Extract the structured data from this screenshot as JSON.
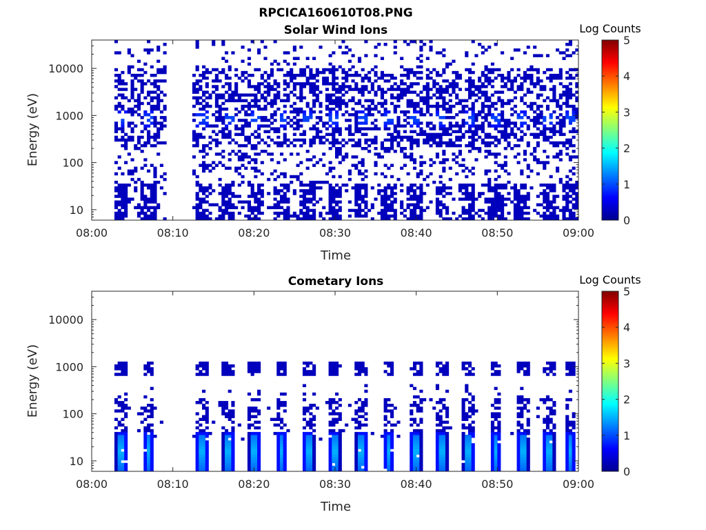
{
  "figure_title": "RPCICA160610T08.PNG",
  "chart_data": [
    {
      "type": "heatmap",
      "title": "Solar Wind Ions",
      "xlabel": "Time",
      "ylabel": "Energy (eV)",
      "x_ticks": [
        "08:00",
        "08:10",
        "08:20",
        "08:30",
        "08:40",
        "08:50",
        "09:00"
      ],
      "x_range": [
        "08:00",
        "09:00"
      ],
      "y_ticks": [
        "10",
        "100",
        "1000",
        "10000"
      ],
      "y_scale": "log",
      "ylim": [
        6,
        40000
      ],
      "colorbar": {
        "label": "Log Counts",
        "ticks": [
          "0",
          "1",
          "2",
          "3",
          "4",
          "5"
        ],
        "range": [
          0,
          5
        ],
        "colormap": "jet"
      },
      "sweep_times": [
        "08:03.7",
        "08:07.0",
        "08:13.6",
        "08:16.9",
        "08:20.1",
        "08:23.4",
        "08:26.7",
        "08:30.0",
        "08:33.3",
        "08:36.6",
        "08:39.9",
        "08:43.2",
        "08:46.5",
        "08:49.8",
        "08:53.1",
        "08:56.4",
        "08:59.0"
      ],
      "data_gap": [
        "08:08.8",
        "08:12.2"
      ],
      "peak_energy_eV": 800,
      "peak_log_counts": 1.0,
      "background_log_counts": 0.3,
      "grid": false
    },
    {
      "type": "heatmap",
      "title": "Cometary Ions",
      "xlabel": "Time",
      "ylabel": "Energy (eV)",
      "x_ticks": [
        "08:00",
        "08:10",
        "08:20",
        "08:30",
        "08:40",
        "08:50",
        "09:00"
      ],
      "x_range": [
        "08:00",
        "09:00"
      ],
      "y_ticks": [
        "10",
        "100",
        "1000",
        "10000"
      ],
      "y_scale": "log",
      "ylim": [
        6,
        40000
      ],
      "colorbar": {
        "label": "Log Counts",
        "ticks": [
          "0",
          "1",
          "2",
          "3",
          "4",
          "5"
        ],
        "range": [
          0,
          5
        ],
        "colormap": "jet"
      },
      "sweep_times": [
        "08:03.7",
        "08:07.0",
        "08:13.6",
        "08:16.9",
        "08:20.1",
        "08:23.4",
        "08:26.7",
        "08:30.0",
        "08:33.3",
        "08:36.6",
        "08:39.9",
        "08:43.2",
        "08:46.5",
        "08:49.8",
        "08:53.1",
        "08:56.4",
        "08:59.0"
      ],
      "data_gap": [
        "08:08.8",
        "08:12.2"
      ],
      "peak_energy_eV": 15,
      "peak_log_counts": 1.5,
      "background_log_counts": 0.3,
      "grid": false
    }
  ]
}
